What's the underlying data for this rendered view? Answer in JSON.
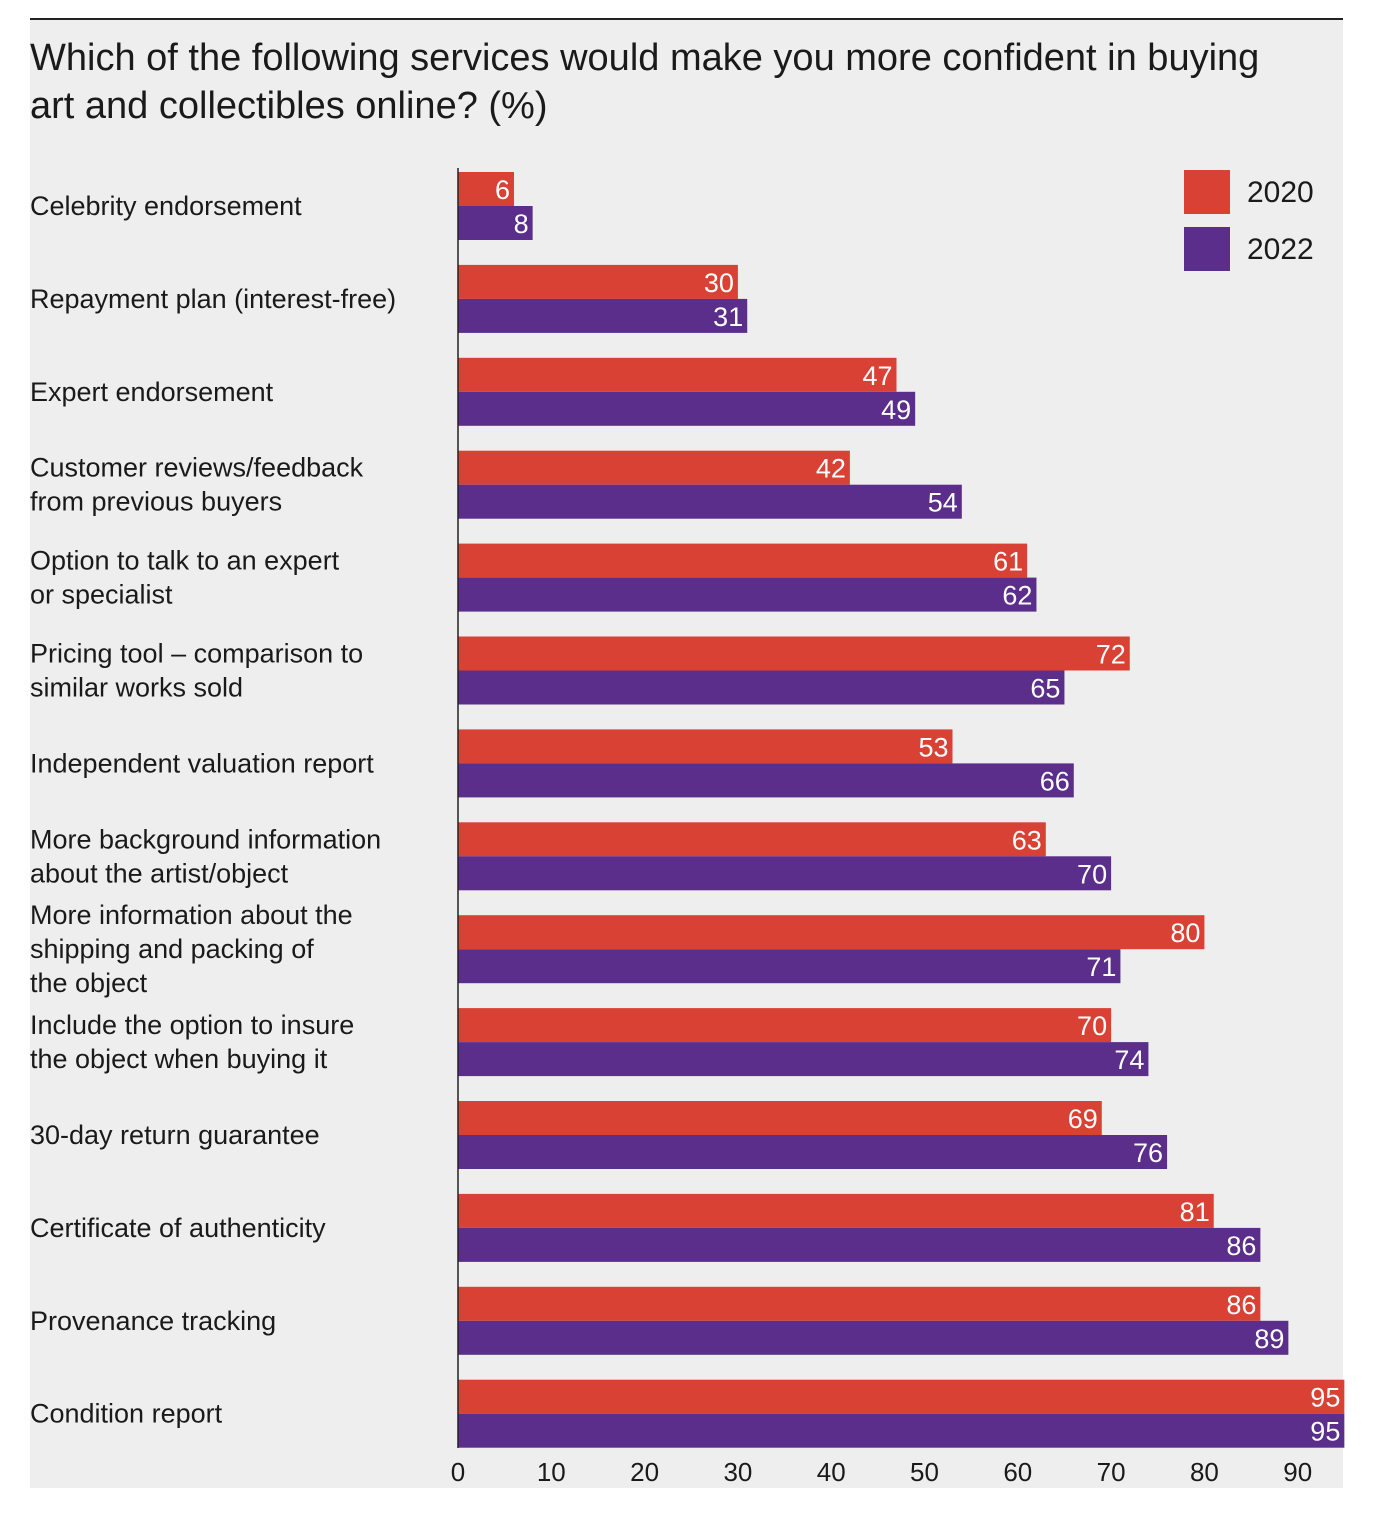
{
  "chart_data": {
    "type": "bar",
    "orientation": "horizontal",
    "title": "Which of the following services would make you more confident in buying art and collectibles online? (%)",
    "categories": [
      "Celebrity endorsement",
      "Repayment plan (interest-free)",
      "Expert endorsement",
      "Customer reviews/feedback from previous buyers",
      "Option to talk to an expert or specialist",
      "Pricing tool – comparison to similar works sold",
      "Independent valuation report",
      "More background information about the artist/object",
      "More information about the shipping and packing of the object",
      "Include the option to insure the object when buying it",
      "30-day return guarantee",
      "Certificate of authenticity",
      "Provenance tracking",
      "Condition report"
    ],
    "category_lines": [
      [
        "Celebrity endorsement"
      ],
      [
        "Repayment plan (interest-free)"
      ],
      [
        "Expert endorsement"
      ],
      [
        "Customer reviews/feedback",
        "from previous buyers"
      ],
      [
        "Option to talk to an expert",
        "or specialist"
      ],
      [
        "Pricing tool – comparison to",
        "similar works sold"
      ],
      [
        "Independent valuation report"
      ],
      [
        "More background information",
        "about the artist/object"
      ],
      [
        "More information about the",
        "shipping and packing of",
        "the object"
      ],
      [
        "Include the option to insure",
        "the object when buying it"
      ],
      [
        "30-day return guarantee"
      ],
      [
        "Certificate of authenticity"
      ],
      [
        "Provenance tracking"
      ],
      [
        "Condition report"
      ]
    ],
    "series": [
      {
        "name": "2020",
        "color": "#d94134",
        "values": [
          6,
          30,
          47,
          42,
          61,
          72,
          53,
          63,
          80,
          70,
          69,
          81,
          86,
          95
        ]
      },
      {
        "name": "2022",
        "color": "#5a2e8a",
        "values": [
          8,
          31,
          49,
          54,
          62,
          65,
          66,
          70,
          71,
          74,
          76,
          86,
          89,
          95
        ]
      }
    ],
    "xlim": [
      0,
      95
    ],
    "xticks": [
      0,
      10,
      20,
      30,
      40,
      50,
      60,
      70,
      80,
      90
    ],
    "legend_position": "top-right",
    "grid": false,
    "xlabel": "",
    "ylabel": ""
  }
}
